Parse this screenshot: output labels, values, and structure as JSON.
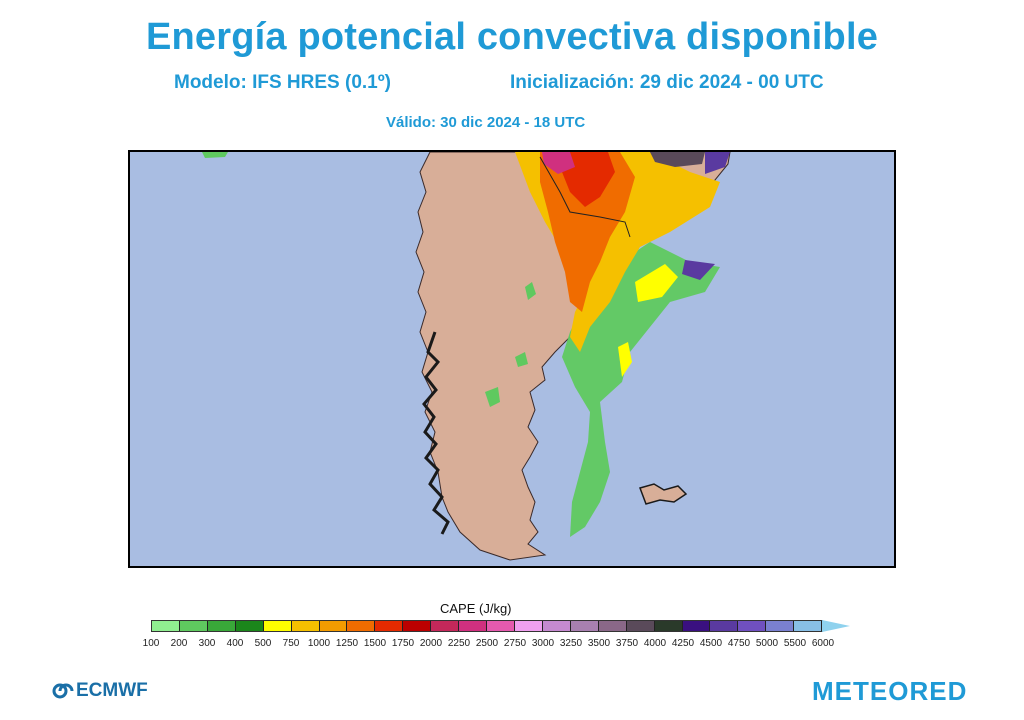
{
  "header": {
    "title": "Energía potencial convectiva disponible",
    "model": "Modelo: IFS HRES (0.1º)",
    "init": "Inicialización: 29 dic 2024 - 00 UTC",
    "valid": "Válido: 30 dic 2024 - 18 UTC"
  },
  "colorbar": {
    "title": "CAPE (J/kg)",
    "ticks": [
      "100",
      "200",
      "300",
      "400",
      "500",
      "750",
      "1000",
      "1250",
      "1500",
      "1750",
      "2000",
      "2250",
      "2500",
      "2750",
      "3000",
      "3250",
      "3500",
      "3750",
      "4000",
      "4250",
      "4500",
      "4750",
      "5000",
      "5500",
      "6000"
    ],
    "colors": [
      "#90ee90",
      "#5fc95f",
      "#39a839",
      "#1b861b",
      "#ffff00",
      "#f5c000",
      "#f39b00",
      "#f06c00",
      "#e42a00",
      "#bb0000",
      "#c4285a",
      "#d0307f",
      "#e55aae",
      "#f0a0f0",
      "#c58ad0",
      "#a880b0",
      "#8a6888",
      "#5a4a5a",
      "#2a3a2a",
      "#3a1080",
      "#5a3aa0",
      "#7050c0",
      "#7a80d0",
      "#88bfe6"
    ]
  },
  "logos": {
    "left": "ECMWF",
    "right": "METEORED"
  },
  "colors": {
    "title": "#1f9ad6",
    "ocean": "#a9bde2",
    "land": "#d8ae98"
  }
}
